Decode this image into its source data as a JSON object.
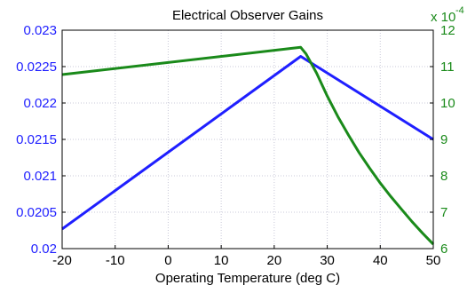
{
  "chart_data": {
    "type": "line",
    "title": "Electrical Observer Gains",
    "xlabel": "Operating Temperature (deg C)",
    "ylabel_left": "",
    "ylabel_right": "",
    "xlim": [
      -20,
      50
    ],
    "x_ticks": [
      -20,
      -10,
      0,
      10,
      20,
      30,
      40,
      50
    ],
    "left_axis": {
      "ylim": [
        0.02,
        0.023
      ],
      "ticks": [
        0.02,
        0.0205,
        0.021,
        0.0215,
        0.022,
        0.0225,
        0.023
      ],
      "tick_labels": [
        "0.02",
        "0.0205",
        "0.021",
        "0.0215",
        "0.022",
        "0.0225",
        "0.023"
      ],
      "color": "#1f1fff"
    },
    "right_axis": {
      "ylim": [
        6,
        12
      ],
      "ticks": [
        6,
        7,
        8,
        9,
        10,
        11,
        12
      ],
      "tick_labels": [
        "6",
        "7",
        "8",
        "9",
        "10",
        "11",
        "12"
      ],
      "multiplier_label": "x 10",
      "multiplier_exponent": "-4",
      "color": "#1a8a1a"
    },
    "grid": true,
    "series": [
      {
        "axis": "left",
        "color": "#1f1fff",
        "x": [
          -20,
          25,
          50
        ],
        "y": [
          0.02027,
          0.02264,
          0.0215
        ]
      },
      {
        "axis": "right",
        "color": "#1a8a1a",
        "x": [
          -20,
          25,
          26,
          28,
          30,
          32,
          34,
          36,
          38,
          40,
          42,
          44,
          46,
          48,
          50
        ],
        "y": [
          10.78,
          11.53,
          11.35,
          10.82,
          10.19,
          9.63,
          9.12,
          8.64,
          8.21,
          7.8,
          7.43,
          7.08,
          6.74,
          6.42,
          6.12
        ]
      }
    ]
  }
}
